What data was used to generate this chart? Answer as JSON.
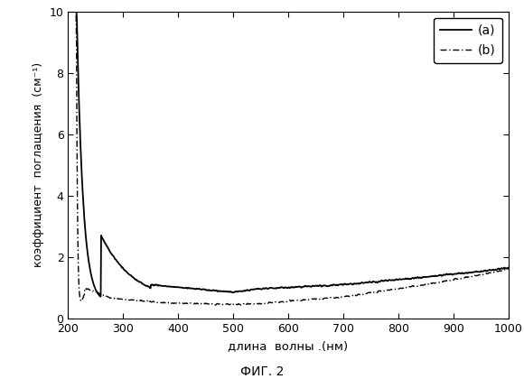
{
  "xlabel": "длина  волны .(нм)",
  "ylabel": "коэффициент  поглащения  (см⁻¹)",
  "caption": "ФИГ. 2",
  "xlim": [
    200,
    1000
  ],
  "ylim": [
    0,
    10
  ],
  "xticks": [
    200,
    300,
    400,
    500,
    600,
    700,
    800,
    900,
    1000
  ],
  "yticks": [
    0,
    2,
    4,
    6,
    8,
    10
  ],
  "legend_a": "(a)",
  "legend_b": "(b)",
  "bg_color": "#ffffff",
  "line_color": "#000000"
}
